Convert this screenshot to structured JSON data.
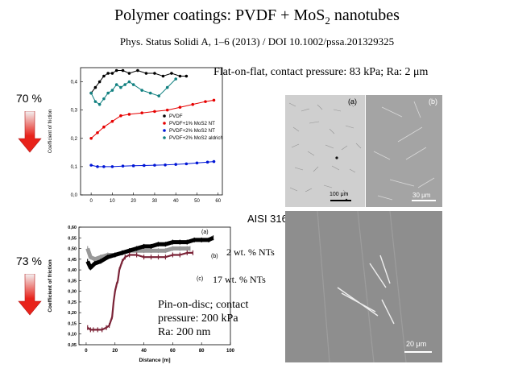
{
  "slide": {
    "title_main": "Polymer coatings: PVDF + MoS",
    "title_sub": "2",
    "title_tail": " nanotubes",
    "citation": "Phys. Status Solidi A, 1–6 (2013) / DOI 10.1002/pssa.201329325",
    "condition_top": "Flat-on-flat, contact pressure: 83 kPa; Ra: 2 μm",
    "reduction_top": "70 %",
    "reduction_bottom": "73 %",
    "substrate": "AISI 316",
    "condition_bottom_1": "Pin-on-disc; contact",
    "condition_bottom_2": "pressure: 200 kPa",
    "condition_bottom_3": "Ra: 200 nm",
    "label_b_desc": "2 wt. % NTs",
    "label_c_desc": "17 wt. % NTs",
    "colors": {
      "arrow": "#e8231b",
      "pvdf": "#000000",
      "mos2_1": "#e60000",
      "mos2_2": "#0016d6",
      "aldrich": "#118080",
      "curve_a": "#000000",
      "curve_b": "#999999",
      "curve_c": "#7b2337"
    }
  },
  "micrographs": {
    "top_left": {
      "label": "(a)",
      "scale": "100 μm"
    },
    "top_right": {
      "label": "(b)",
      "scale": "30 μm"
    },
    "bottom": {
      "scale": "20 μm"
    }
  },
  "chart_data": [
    {
      "type": "line",
      "ylabel": "Coefficient of friction",
      "xlabel": "",
      "xlim": [
        -5,
        62
      ],
      "ylim": [
        0,
        0.45
      ],
      "x_ticks": [
        "0",
        "10",
        "20",
        "30",
        "40",
        "50",
        "60"
      ],
      "y_ticks": [
        "0,0",
        "0,1",
        "0,2",
        "0,3",
        "0,4"
      ],
      "legend_placement": "right",
      "series": [
        {
          "name": "PVDF",
          "x": [
            0,
            2,
            4,
            6,
            8,
            10,
            12,
            15,
            18,
            22,
            26,
            30,
            34,
            38,
            42,
            45
          ],
          "y": [
            0.36,
            0.38,
            0.4,
            0.42,
            0.43,
            0.43,
            0.44,
            0.44,
            0.43,
            0.44,
            0.43,
            0.43,
            0.42,
            0.43,
            0.42,
            0.42
          ]
        },
        {
          "name": "PVDF+1% MoS2 NT",
          "x": [
            0,
            3,
            6,
            10,
            14,
            18,
            24,
            30,
            36,
            42,
            48,
            54,
            58
          ],
          "y": [
            0.2,
            0.22,
            0.24,
            0.26,
            0.28,
            0.285,
            0.29,
            0.295,
            0.3,
            0.31,
            0.32,
            0.33,
            0.335
          ]
        },
        {
          "name": "PVDF+2% MoS2 NT",
          "x": [
            0,
            3,
            6,
            10,
            15,
            20,
            25,
            30,
            35,
            40,
            45,
            50,
            55,
            58
          ],
          "y": [
            0.105,
            0.1,
            0.1,
            0.1,
            0.102,
            0.103,
            0.104,
            0.105,
            0.106,
            0.108,
            0.11,
            0.113,
            0.116,
            0.118
          ]
        },
        {
          "name": "PVDF+2% MoS2 aldrich",
          "x": [
            0,
            2,
            4,
            6,
            8,
            10,
            12,
            14,
            16,
            18,
            20,
            24,
            28,
            32,
            36,
            40
          ],
          "y": [
            0.36,
            0.33,
            0.32,
            0.34,
            0.36,
            0.37,
            0.39,
            0.38,
            0.39,
            0.4,
            0.39,
            0.37,
            0.36,
            0.35,
            0.38,
            0.41
          ]
        }
      ]
    },
    {
      "type": "line",
      "xlabel": "Distance [m]",
      "ylabel": "Coefficient of friction",
      "xlim": [
        -5,
        100
      ],
      "ylim": [
        0.05,
        0.6
      ],
      "x_ticks": [
        "0",
        "20",
        "40",
        "60",
        "80",
        "100"
      ],
      "y_ticks": [
        "0,05",
        "0,10",
        "0,15",
        "0,20",
        "0,25",
        "0,30",
        "0,35",
        "0,40",
        "0,45",
        "0,50",
        "0,55",
        "0,60"
      ],
      "annotations": [
        "(a)",
        "(b)",
        "(c)"
      ],
      "series": [
        {
          "name": "(a)",
          "x": [
            1,
            3,
            6,
            10,
            15,
            20,
            25,
            30,
            35,
            40,
            45,
            50,
            55,
            60,
            65,
            70,
            75,
            80,
            85,
            88
          ],
          "y": [
            0.44,
            0.41,
            0.43,
            0.44,
            0.46,
            0.47,
            0.48,
            0.49,
            0.5,
            0.51,
            0.51,
            0.52,
            0.52,
            0.53,
            0.53,
            0.53,
            0.54,
            0.54,
            0.54,
            0.55
          ]
        },
        {
          "name": "(b)",
          "x": [
            1,
            3,
            6,
            10,
            15,
            20,
            25,
            30,
            35,
            40,
            45,
            50,
            55,
            60,
            65,
            70,
            72
          ],
          "y": [
            0.5,
            0.46,
            0.45,
            0.46,
            0.47,
            0.47,
            0.48,
            0.49,
            0.49,
            0.49,
            0.49,
            0.49,
            0.49,
            0.5,
            0.5,
            0.5,
            0.5
          ]
        },
        {
          "name": "(c)",
          "x": [
            1,
            3,
            5,
            8,
            11,
            14,
            16,
            18,
            19,
            20,
            21,
            22,
            23,
            25,
            27,
            30,
            35,
            40,
            45,
            50,
            55,
            60,
            65,
            70,
            74
          ],
          "y": [
            0.13,
            0.12,
            0.12,
            0.12,
            0.12,
            0.13,
            0.14,
            0.18,
            0.25,
            0.3,
            0.33,
            0.35,
            0.4,
            0.44,
            0.46,
            0.47,
            0.47,
            0.46,
            0.46,
            0.46,
            0.46,
            0.47,
            0.47,
            0.48,
            0.48
          ]
        }
      ]
    }
  ]
}
